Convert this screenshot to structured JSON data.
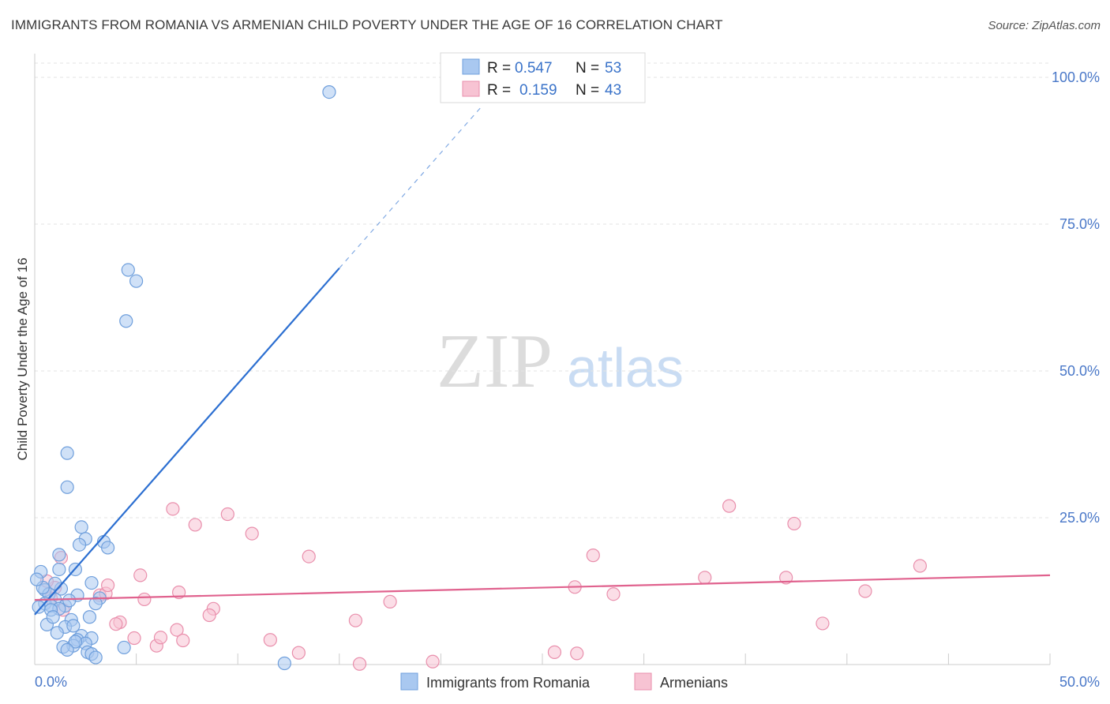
{
  "title": "IMMIGRANTS FROM ROMANIA VS ARMENIAN CHILD POVERTY UNDER THE AGE OF 16 CORRELATION CHART",
  "source": "Source: ZipAtlas.com",
  "watermark": {
    "zip": "ZIP",
    "atlas": "atlas"
  },
  "colors": {
    "blue_fill": "#a9c8f0",
    "blue_stroke": "#6f9fdc",
    "blue_line": "#2c6fd1",
    "pink_fill": "#f7c3d3",
    "pink_stroke": "#e98fac",
    "pink_line": "#e0628e",
    "tick_text": "#4a78c8",
    "grid": "#e3e3e3"
  },
  "legend": {
    "r_label": "R =",
    "n_label": "N =",
    "items": [
      {
        "series": "Immigrants from Romania",
        "r": "0.547",
        "n": "53",
        "color": "blue"
      },
      {
        "series": "Armenians",
        "r": "0.159",
        "n": "43",
        "color": "pink"
      }
    ]
  },
  "chart_data": {
    "type": "scatter",
    "title": "IMMIGRANTS FROM ROMANIA VS ARMENIAN CHILD POVERTY UNDER THE AGE OF 16 CORRELATION CHART",
    "xlabel": "",
    "ylabel": "Child Poverty Under the Age of 16",
    "xlim": [
      0,
      50
    ],
    "ylim": [
      0,
      100
    ],
    "x_tick_labels": [
      "0.0%",
      "50.0%"
    ],
    "y_ticks": [
      {
        "value": 100,
        "label": "100.0%"
      },
      {
        "value": 75,
        "label": "75.0%"
      },
      {
        "value": 50,
        "label": "50.0%"
      },
      {
        "value": 25,
        "label": "25.0%"
      }
    ],
    "series": [
      {
        "name": "Immigrants from Romania",
        "color": "blue",
        "trendline": {
          "x0": 0,
          "y0": 8.5,
          "x1": 15,
          "y1": 67.5,
          "dashed_to_x": 22,
          "dashed_to_y": 95
        },
        "points": [
          [
            14.5,
            97.5
          ],
          [
            4.6,
            67.2
          ],
          [
            5.0,
            65.3
          ],
          [
            4.5,
            58.5
          ],
          [
            1.6,
            36.0
          ],
          [
            1.6,
            30.2
          ],
          [
            2.3,
            23.4
          ],
          [
            2.5,
            21.4
          ],
          [
            2.2,
            20.4
          ],
          [
            3.4,
            20.9
          ],
          [
            3.6,
            19.9
          ],
          [
            1.2,
            18.7
          ],
          [
            1.2,
            16.2
          ],
          [
            2.0,
            16.2
          ],
          [
            0.3,
            15.8
          ],
          [
            2.8,
            13.9
          ],
          [
            0.5,
            12.7
          ],
          [
            1.3,
            12.9
          ],
          [
            2.1,
            11.8
          ],
          [
            0.7,
            12.0
          ],
          [
            1.0,
            11.1
          ],
          [
            3.2,
            11.3
          ],
          [
            0.5,
            10.4
          ],
          [
            0.8,
            10.0
          ],
          [
            1.5,
            10.0
          ],
          [
            3.0,
            10.4
          ],
          [
            0.2,
            9.8
          ],
          [
            1.2,
            9.5
          ],
          [
            2.7,
            8.1
          ],
          [
            0.8,
            9.3
          ],
          [
            1.8,
            7.6
          ],
          [
            1.5,
            6.4
          ],
          [
            0.6,
            6.8
          ],
          [
            1.9,
            6.6
          ],
          [
            1.1,
            5.4
          ],
          [
            2.3,
            4.9
          ],
          [
            2.8,
            4.5
          ],
          [
            2.1,
            4.2
          ],
          [
            2.5,
            3.6
          ],
          [
            1.9,
            3.2
          ],
          [
            1.4,
            3.0
          ],
          [
            2.0,
            3.9
          ],
          [
            1.6,
            2.5
          ],
          [
            2.6,
            2.1
          ],
          [
            2.8,
            1.8
          ],
          [
            4.4,
            2.9
          ],
          [
            3.0,
            1.2
          ],
          [
            12.3,
            0.2
          ],
          [
            1.0,
            13.8
          ],
          [
            0.4,
            13.1
          ],
          [
            1.7,
            10.9
          ],
          [
            0.9,
            8.1
          ],
          [
            0.1,
            14.5
          ]
        ]
      },
      {
        "name": "Armenians",
        "color": "pink",
        "trendline": {
          "x0": 0,
          "y0": 11.0,
          "x1": 50,
          "y1": 15.2
        },
        "points": [
          [
            6.8,
            26.5
          ],
          [
            9.5,
            25.6
          ],
          [
            7.9,
            23.8
          ],
          [
            10.7,
            22.3
          ],
          [
            1.3,
            18.2
          ],
          [
            13.5,
            18.4
          ],
          [
            27.5,
            18.6
          ],
          [
            5.2,
            15.2
          ],
          [
            7.1,
            12.3
          ],
          [
            5.4,
            11.1
          ],
          [
            8.8,
            9.5
          ],
          [
            8.6,
            8.4
          ],
          [
            4.2,
            7.2
          ],
          [
            4.0,
            6.9
          ],
          [
            7.0,
            5.9
          ],
          [
            4.9,
            4.5
          ],
          [
            6.0,
            3.2
          ],
          [
            7.3,
            4.1
          ],
          [
            6.2,
            4.6
          ],
          [
            13.0,
            2.0
          ],
          [
            11.6,
            4.2
          ],
          [
            17.5,
            10.7
          ],
          [
            15.8,
            7.5
          ],
          [
            16.0,
            0.1
          ],
          [
            0.8,
            11.3
          ],
          [
            1.0,
            13.1
          ],
          [
            3.2,
            11.8
          ],
          [
            3.5,
            12.1
          ],
          [
            3.6,
            13.5
          ],
          [
            1.4,
            9.3
          ],
          [
            26.6,
            13.2
          ],
          [
            25.6,
            2.1
          ],
          [
            26.7,
            1.9
          ],
          [
            28.5,
            12.0
          ],
          [
            33.0,
            14.8
          ],
          [
            37.0,
            14.8
          ],
          [
            34.2,
            27.0
          ],
          [
            37.4,
            24.0
          ],
          [
            40.9,
            12.5
          ],
          [
            38.8,
            7.0
          ],
          [
            43.6,
            16.8
          ],
          [
            19.6,
            0.5
          ],
          [
            0.6,
            14.2
          ]
        ]
      }
    ]
  }
}
